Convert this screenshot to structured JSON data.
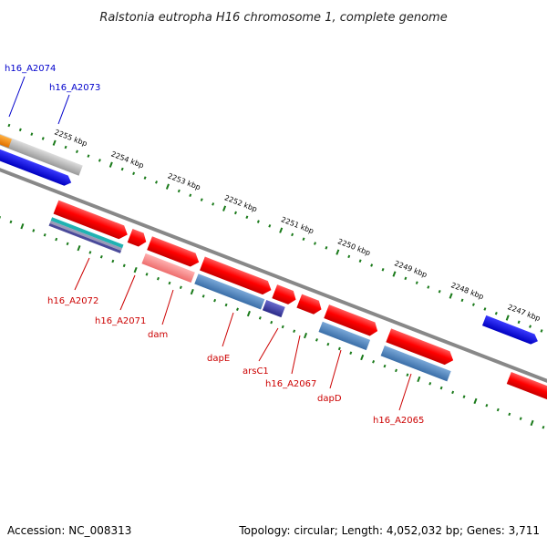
{
  "title": "Ralstonia eutropha H16 chromosome 1, complete genome",
  "footer": {
    "accession": "Accession: NC_008313",
    "stats": "Topology: circular; Length: 4,052,032 bp; Genes: 3,711"
  },
  "colors": {
    "forward_cds": "#ff0000",
    "reverse_cds": "#0000ee",
    "rna": "#4a86c8",
    "backbone": "#888888",
    "ticks": "#1a7a1a",
    "label_forward": "#cc0000",
    "label_reverse": "#0000cc"
  },
  "kbp_labels": [
    "2255 kbp",
    "2254 kbp",
    "2253 kbp",
    "2252 kbp",
    "2251 kbp",
    "2250 kbp",
    "2249 kbp",
    "2248 kbp",
    "2247 kbp"
  ],
  "gene_labels": [
    {
      "text": "h16_A2074",
      "strand": "reverse"
    },
    {
      "text": "h16_A2073",
      "strand": "reverse"
    },
    {
      "text": "h16_A2072",
      "strand": "forward"
    },
    {
      "text": "h16_A2071",
      "strand": "forward"
    },
    {
      "text": "dam",
      "strand": "forward"
    },
    {
      "text": "dapE",
      "strand": "forward"
    },
    {
      "text": "arsC1",
      "strand": "forward"
    },
    {
      "text": "h16_A2067",
      "strand": "forward"
    },
    {
      "text": "dapD",
      "strand": "forward"
    },
    {
      "text": "h16_A2065",
      "strand": "forward"
    }
  ]
}
